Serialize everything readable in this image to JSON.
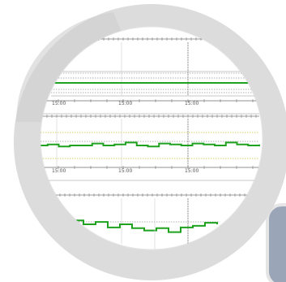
{
  "theme": {
    "ring": "#dcdcdc",
    "ring_edge": "#cfcfcf",
    "lens_bg": "#ffffff",
    "trace_green": "#1fa21f",
    "dotted_yellow": "#c9c23a",
    "axis": "#7a7a7a",
    "panel_slate": "#9aa6b8"
  },
  "icons": {
    "magnifier": "magnifier-lens-icon"
  },
  "charts": {
    "tick_labels": [
      "15:00",
      "15:00",
      "15:00"
    ]
  },
  "chart_data": [
    {
      "type": "line",
      "title": "",
      "xlabel": "",
      "ylabel": "",
      "x": [
        0,
        1,
        2,
        3,
        4,
        5,
        6,
        7,
        8,
        9,
        10,
        11,
        12,
        13,
        14,
        15,
        16,
        17,
        18,
        19,
        20
      ],
      "series": [
        {
          "values": [
            5,
            5,
            5,
            5,
            5,
            5,
            5,
            5,
            5,
            5,
            5,
            5,
            5,
            5,
            5,
            5,
            5,
            5,
            5,
            5,
            5
          ]
        }
      ],
      "ylim": [
        0,
        10
      ],
      "grid": true
    },
    {
      "type": "line",
      "title": "",
      "xlabel": "",
      "ylabel": "",
      "x": [
        0,
        1,
        2,
        3,
        4,
        5,
        6,
        7,
        8,
        9,
        10,
        11,
        12,
        13,
        14,
        15,
        16,
        17,
        18,
        19,
        20
      ],
      "series": [
        {
          "values": [
            5.0,
            5.1,
            4.9,
            5.0,
            5.0,
            5.2,
            5.0,
            5.1,
            5.3,
            5.0,
            4.9,
            5.2,
            5.1,
            5.0,
            5.2,
            5.1,
            5.0,
            5.3,
            5.1,
            5.0,
            5.1
          ]
        }
      ],
      "ylim": [
        0,
        10
      ],
      "grid": true
    },
    {
      "type": "line",
      "title": "",
      "xlabel": "",
      "ylabel": "",
      "x": [
        0,
        1,
        2,
        3,
        4,
        5,
        6,
        7,
        8,
        9,
        10,
        11,
        12
      ],
      "series": [
        {
          "values": [
            5.5,
            5.0,
            5.3,
            4.6,
            5.0,
            4.5,
            4.2,
            4.5,
            4.0,
            4.6,
            4.8,
            5.2,
            5.0
          ]
        }
      ],
      "ylim": [
        0,
        10
      ],
      "grid": true
    }
  ]
}
